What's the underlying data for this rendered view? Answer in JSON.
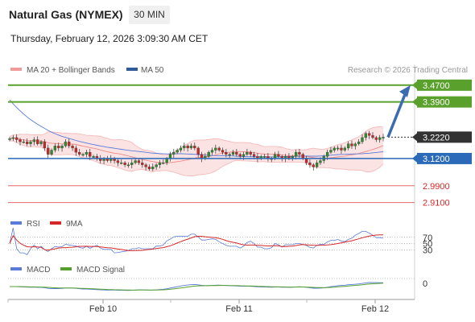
{
  "header": {
    "instrument": "Natural Gas (NYMEX)",
    "timeframe": "30 MIN",
    "datetime": "Thursday, February 12, 2026 3:09:30 AM CET"
  },
  "legend": {
    "ma20_label": "MA 20 + Bollinger Bands",
    "ma50_label": "MA 50",
    "research": "Research © 2026 Trading Central"
  },
  "colors": {
    "resistance": "#5aa02c",
    "current_price": "#333333",
    "pivot": "#2a6ab8",
    "support": "#e36a6a",
    "bollinger_fill": "#fbe3e3",
    "ma50": "#5a7bd8",
    "bull_candle": "#2e8b2e",
    "bear_candle": "#c62828",
    "arrow": "#3b6cb0",
    "rsi": "#5a7bd8",
    "rsi_ma": "#d62828",
    "macd": "#5a7bd8",
    "macd_signal": "#55a02c"
  },
  "chart_data": [
    {
      "type": "candlestick",
      "name": "price",
      "x_ticks": [
        "Feb 10",
        "Feb 11",
        "Feb 12"
      ],
      "ylim": [
        2.87,
        3.5
      ],
      "overlays": [
        "MA 20 + Bollinger Bands",
        "MA 50"
      ],
      "levels": [
        {
          "value": 3.47,
          "label": "3.4700",
          "role": "resistance"
        },
        {
          "value": 3.39,
          "label": "3.3900",
          "role": "resistance"
        },
        {
          "value": 3.222,
          "label": "3.2220",
          "role": "current_price"
        },
        {
          "value": 3.12,
          "label": "3.1200",
          "role": "pivot"
        },
        {
          "value": 2.99,
          "label": "2.9900",
          "role": "support"
        },
        {
          "value": 2.91,
          "label": "2.9100",
          "role": "support"
        }
      ],
      "close_series": [
        3.215,
        3.22,
        3.21,
        3.2,
        3.2,
        3.19,
        3.2,
        3.21,
        3.19,
        3.2,
        3.17,
        3.14,
        3.16,
        3.18,
        3.17,
        3.18,
        3.2,
        3.18,
        3.17,
        3.15,
        3.14,
        3.14,
        3.15,
        3.13,
        3.13,
        3.12,
        3.11,
        3.12,
        3.11,
        3.12,
        3.11,
        3.1,
        3.1,
        3.09,
        3.09,
        3.1,
        3.11,
        3.1,
        3.09,
        3.08,
        3.07,
        3.08,
        3.09,
        3.1,
        3.1,
        3.12,
        3.14,
        3.15,
        3.16,
        3.17,
        3.18,
        3.17,
        3.18,
        3.17,
        3.14,
        3.12,
        3.13,
        3.15,
        3.16,
        3.17,
        3.16,
        3.15,
        3.14,
        3.14,
        3.15,
        3.14,
        3.13,
        3.14,
        3.15,
        3.14,
        3.13,
        3.12,
        3.13,
        3.13,
        3.12,
        3.12,
        3.14,
        3.13,
        3.12,
        3.13,
        3.12,
        3.13,
        3.15,
        3.14,
        3.12,
        3.1,
        3.09,
        3.08,
        3.1,
        3.11,
        3.13,
        3.15,
        3.16,
        3.17,
        3.17,
        3.16,
        3.17,
        3.19,
        3.18,
        3.19,
        3.2,
        3.22,
        3.24,
        3.23,
        3.22,
        3.21,
        3.22,
        3.222
      ],
      "forecast_arrow": {
        "from": 3.222,
        "to": 3.47
      }
    },
    {
      "type": "line",
      "name": "RSI",
      "series": [
        {
          "name": "RSI"
        },
        {
          "name": "9MA"
        }
      ],
      "levels": [
        70,
        50,
        30
      ],
      "level_labels": [
        "70",
        "50",
        "30"
      ]
    },
    {
      "type": "line",
      "name": "MACD",
      "series": [
        {
          "name": "MACD"
        },
        {
          "name": "MACD Signal"
        }
      ],
      "level_labels": [
        "0"
      ]
    }
  ]
}
